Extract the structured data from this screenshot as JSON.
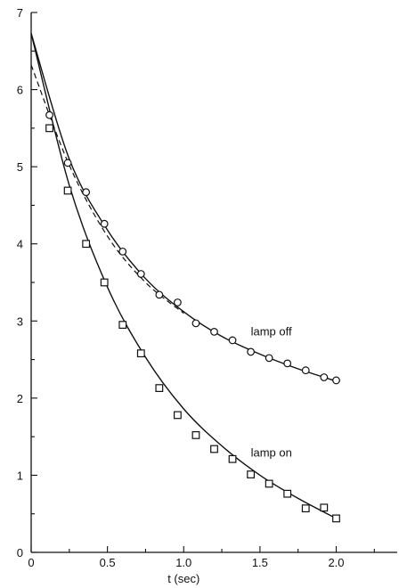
{
  "chart_data": {
    "type": "scatter",
    "title": "",
    "xlabel": "t (sec)",
    "ylabel": "",
    "xlim": [
      0,
      2.4
    ],
    "ylim": [
      0,
      7
    ],
    "x_ticks": [
      0,
      0.5,
      1.0,
      1.5,
      2.0
    ],
    "x_tick_labels": [
      "0",
      "0.5",
      "1.0",
      "1.5",
      "2.0"
    ],
    "y_ticks": [
      0,
      1,
      2,
      3,
      4,
      5,
      6,
      7
    ],
    "y_tick_labels": [
      "0",
      "1",
      "2",
      "3",
      "4",
      "5",
      "6",
      "7"
    ],
    "grid": false,
    "legend": "none",
    "series": [
      {
        "name": "lamp off",
        "marker": "circle",
        "x": [
          0.12,
          0.24,
          0.36,
          0.48,
          0.6,
          0.72,
          0.84,
          0.96,
          1.08,
          1.2,
          1.32,
          1.44,
          1.56,
          1.68,
          1.8,
          1.92,
          2.0
        ],
        "y": [
          5.67,
          5.05,
          4.67,
          4.26,
          3.9,
          3.61,
          3.34,
          3.24,
          2.97,
          2.86,
          2.75,
          2.6,
          2.52,
          2.45,
          2.36,
          2.27,
          2.23
        ],
        "fit": {
          "style": "solid",
          "x": [
            0,
            0.25,
            0.5,
            0.75,
            1.0,
            1.25,
            1.5,
            1.75,
            2.0
          ],
          "y": [
            6.73,
            5.1,
            4.18,
            3.55,
            3.12,
            2.8,
            2.57,
            2.38,
            2.22
          ]
        },
        "fit_alt": {
          "style": "dashed",
          "x": [
            0,
            0.25,
            0.5,
            0.75,
            1.0
          ],
          "y": [
            6.32,
            5.02,
            4.1,
            3.5,
            3.1
          ]
        }
      },
      {
        "name": "lamp on",
        "marker": "square",
        "x": [
          0.12,
          0.24,
          0.36,
          0.48,
          0.6,
          0.72,
          0.84,
          0.96,
          1.08,
          1.2,
          1.32,
          1.44,
          1.56,
          1.68,
          1.8,
          1.92,
          2.0
        ],
        "y": [
          5.5,
          4.69,
          4.0,
          3.5,
          2.95,
          2.58,
          2.13,
          1.78,
          1.52,
          1.34,
          1.21,
          1.01,
          0.89,
          0.76,
          0.57,
          0.58,
          0.44
        ],
        "fit": {
          "style": "solid",
          "x": [
            0,
            0.25,
            0.5,
            0.75,
            1.0,
            1.25,
            1.5,
            1.75,
            2.0
          ],
          "y": [
            6.73,
            4.76,
            3.44,
            2.53,
            1.86,
            1.38,
            1.0,
            0.7,
            0.44
          ]
        }
      }
    ],
    "annotations": [
      "lamp off",
      "lamp on"
    ]
  }
}
